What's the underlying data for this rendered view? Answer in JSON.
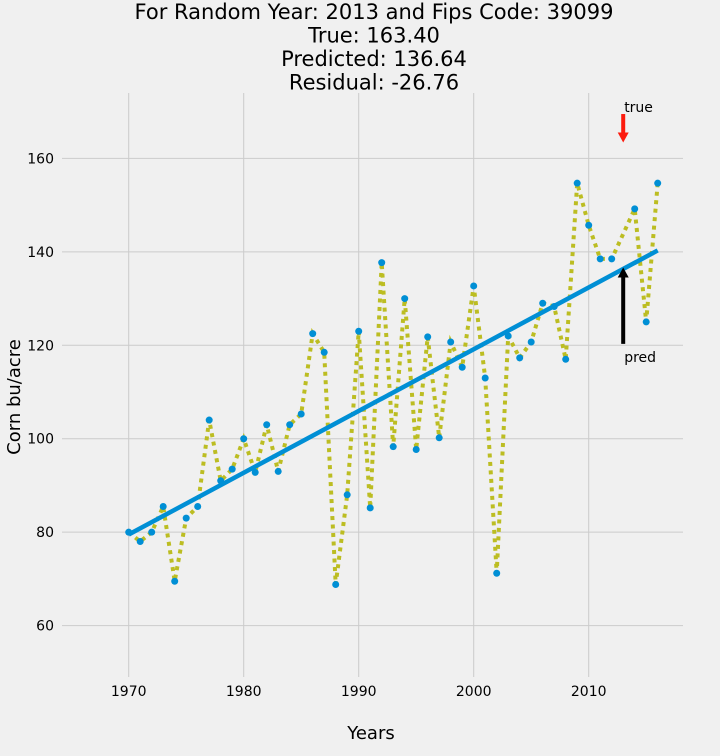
{
  "chart_data": {
    "type": "scatter",
    "title_lines": [
      "For Random Year: 2013 and Fips Code: 39099",
      "True: 163.40",
      "Predicted: 136.64",
      "Residual: -26.76"
    ],
    "xlabel": "Years",
    "ylabel": "Corn bu/acre",
    "xlim": [
      1964.2,
      2018.2
    ],
    "ylim": [
      49,
      174
    ],
    "xticks": [
      1970,
      1980,
      1990,
      2000,
      2010
    ],
    "yticks": [
      60,
      80,
      100,
      120,
      140,
      160
    ],
    "grid": true,
    "series": [
      {
        "style": "dotted-line-with-points",
        "line_color": "#bcbd22",
        "marker_color": "#008fd5",
        "x": [
          1970,
          1971,
          1972,
          1973,
          1974,
          1975,
          1976,
          1977,
          1978,
          1979,
          1980,
          1981,
          1982,
          1983,
          1984,
          1985,
          1986,
          1987,
          1988,
          1989,
          1990,
          1991,
          1992,
          1993,
          1994,
          1995,
          1996,
          1997,
          1998,
          1999,
          2000,
          2001,
          2002,
          2003,
          2004,
          2005,
          2006,
          2007,
          2008,
          2009,
          2010,
          2011,
          2012,
          2014,
          2015,
          2016
        ],
        "y": [
          80.0,
          78.0,
          80.0,
          85.5,
          69.5,
          83.0,
          85.5,
          104.0,
          91.0,
          93.5,
          100.0,
          92.8,
          103.0,
          93.0,
          103.0,
          105.3,
          122.5,
          118.5,
          68.8,
          88.0,
          123.0,
          85.2,
          137.7,
          98.3,
          130.0,
          97.7,
          121.8,
          100.2,
          120.7,
          115.3,
          132.7,
          113.0,
          71.2,
          122.0,
          117.3,
          120.7,
          129.0,
          128.3,
          117.0,
          154.7,
          145.7,
          138.5,
          138.5,
          149.2,
          125.0,
          154.7
        ]
      },
      {
        "style": "trend-line",
        "color": "#008fd5",
        "x": [
          1970,
          2016
        ],
        "y": [
          79.5,
          140.3
        ]
      }
    ],
    "annotations": [
      {
        "text": "true",
        "x": 2013,
        "y_label": 171,
        "arrow_from_y": 169.5,
        "arrow_to_y": 163.4,
        "color": "#fc1b0e"
      },
      {
        "text": "pred",
        "x": 2013,
        "y_label": 117.5,
        "arrow_from_y": 120.3,
        "arrow_to_y": 136.64,
        "color": "#000000"
      }
    ]
  }
}
